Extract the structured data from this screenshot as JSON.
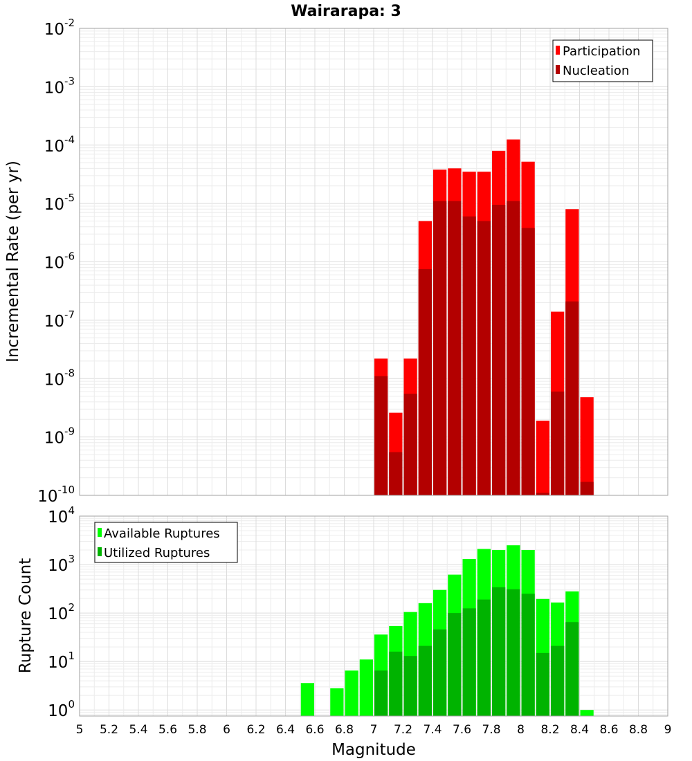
{
  "title": "Wairarapa: 3",
  "chart_data": [
    {
      "type": "bar",
      "name": "rate_panel",
      "ylabel": "Incremental Rate (per yr)",
      "yscale": "log",
      "ylim": [
        1e-10,
        0.01
      ],
      "ytick_exponents": [
        -2,
        -3,
        -4,
        -5,
        -6,
        -7,
        -8,
        -9,
        -10
      ],
      "x": [
        7.05,
        7.15,
        7.25,
        7.35,
        7.45,
        7.55,
        7.65,
        7.75,
        7.85,
        7.95,
        8.05,
        8.15,
        8.25,
        8.35,
        8.45
      ],
      "series": [
        {
          "name": "Participation",
          "color": "#ff0000",
          "values": [
            2.2e-08,
            2.6e-09,
            2.2e-08,
            5e-06,
            3.8e-05,
            4e-05,
            3.5e-05,
            3.5e-05,
            8e-05,
            0.000125,
            5.2e-05,
            1.9e-09,
            1.4e-07,
            8e-06,
            4.8e-09
          ]
        },
        {
          "name": "Nucleation",
          "color": "#b30000",
          "values": [
            1.1e-08,
            5.5e-10,
            5.5e-09,
            7.5e-07,
            1.1e-05,
            1.1e-05,
            6e-06,
            5e-06,
            9.5e-06,
            1.1e-05,
            3.8e-06,
            1.1e-10,
            6e-09,
            2.1e-07,
            1.7e-10
          ]
        }
      ],
      "legend": {
        "position": "top-right"
      }
    },
    {
      "type": "bar",
      "name": "count_panel",
      "ylabel": "Rupture Count",
      "yscale": "log",
      "ylim": [
        0.75,
        10000
      ],
      "ytick_exponents": [
        4,
        3,
        2,
        1,
        0
      ],
      "x": [
        6.55,
        6.75,
        6.85,
        6.95,
        7.05,
        7.15,
        7.25,
        7.35,
        7.45,
        7.55,
        7.65,
        7.75,
        7.85,
        7.95,
        8.05,
        8.15,
        8.25,
        8.35,
        8.45
      ],
      "series": [
        {
          "name": "Available Ruptures",
          "color": "#00ff00",
          "values": [
            3.6,
            2.8,
            6.5,
            11,
            36,
            54,
            105,
            160,
            300,
            620,
            1300,
            2100,
            2000,
            2500,
            2000,
            195,
            165,
            280,
            1
          ]
        },
        {
          "name": "Utilized Ruptures",
          "color": "#00b300",
          "values": [
            0,
            0,
            0,
            0,
            6.5,
            16,
            13,
            21,
            46,
            100,
            125,
            190,
            340,
            310,
            250,
            15,
            21,
            65,
            0
          ]
        }
      ],
      "legend": {
        "position": "top-left"
      }
    }
  ],
  "xaxis": {
    "label": "Magnitude",
    "xlim": [
      5,
      9
    ],
    "ticks": [
      "5",
      "5.2",
      "5.4",
      "5.6",
      "5.8",
      "6",
      "6.2",
      "6.4",
      "6.6",
      "6.8",
      "7",
      "7.2",
      "7.4",
      "7.6",
      "7.8",
      "8",
      "8.2",
      "8.4",
      "8.6",
      "8.8",
      "9"
    ]
  }
}
